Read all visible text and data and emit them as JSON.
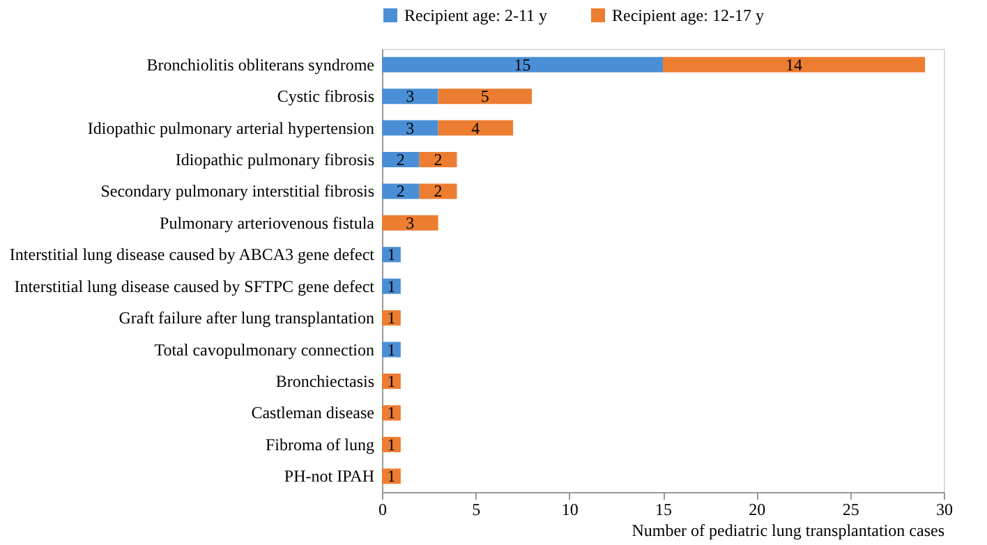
{
  "chart_data": {
    "type": "bar",
    "orientation": "horizontal",
    "stacked": true,
    "data_labels": true,
    "categories": [
      "Bronchiolitis obliterans syndrome",
      "Cystic fibrosis",
      "Idiopathic pulmonary arterial hypertension",
      "Idiopathic pulmonary fibrosis",
      "Secondary pulmonary interstitial fibrosis",
      "Pulmonary arteriovenous fistula",
      "Interstitial lung disease caused by ABCA3 gene defect",
      "Interstitial lung disease caused by SFTPC gene defect",
      "Graft failure after lung transplantation",
      "Total cavopulmonary connection",
      "Bronchiectasis",
      "Castleman disease",
      "Fibroma of lung",
      "PH-not IPAH"
    ],
    "series": [
      {
        "name": "Recipient age: 2-11 y",
        "color": "#4a8fd6",
        "values": [
          15,
          3,
          3,
          2,
          2,
          null,
          1,
          1,
          null,
          1,
          null,
          null,
          null,
          null
        ]
      },
      {
        "name": "Recipient age: 12-17 y",
        "color": "#ed7d31",
        "values": [
          14,
          5,
          4,
          2,
          2,
          3,
          null,
          null,
          1,
          null,
          1,
          1,
          1,
          1
        ]
      }
    ],
    "xlabel": "Number of pediatric lung transplantation cases",
    "xlim": [
      0,
      30
    ],
    "xticks": [
      0,
      5,
      10,
      15,
      20,
      25,
      30
    ],
    "grid": false,
    "legend": "top"
  }
}
